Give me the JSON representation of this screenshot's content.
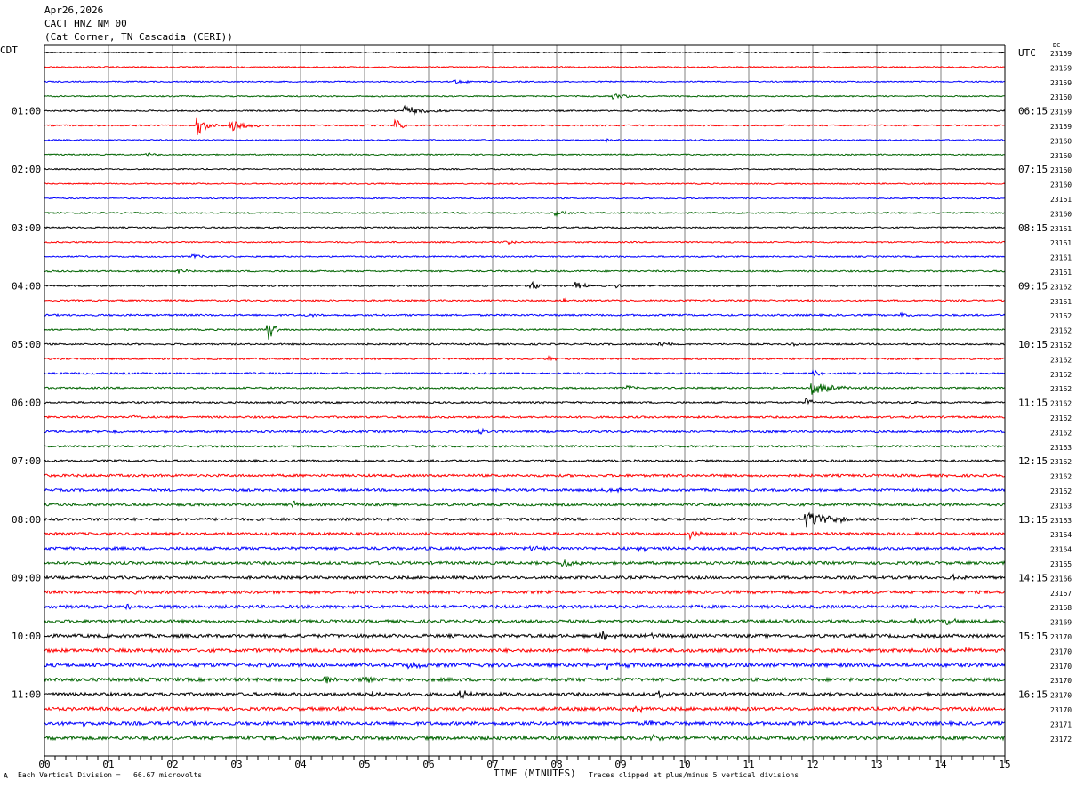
{
  "header": {
    "date": "Apr26,2026",
    "station": "CACT HNZ NM 00",
    "location": "(Cat Corner, TN Cascadia (CERI))"
  },
  "left_timezone": "CDT",
  "right_timezone": "UTC",
  "dc_label": "DC",
  "footer": {
    "scale_note": "Each Vertical Division =   66.67 microvolts",
    "xlabel": "TIME (MINUTES)",
    "clip_note": "Traces clipped at plus/minus 5 vertical divisions",
    "corner_mark": "A"
  },
  "colors": {
    "trace_cycle": [
      "#000000",
      "#ff0000",
      "#0000ff",
      "#006400"
    ],
    "grid": "#808080",
    "frame": "#000000"
  },
  "chart_data": {
    "type": "line",
    "title": "",
    "xlabel": "TIME (MINUTES)",
    "ylabel": "",
    "xlim": [
      0,
      15
    ],
    "x_ticks": [
      "00",
      "01",
      "02",
      "03",
      "04",
      "05",
      "06",
      "07",
      "08",
      "09",
      "10",
      "11",
      "12",
      "13",
      "14",
      "15"
    ],
    "rows_per_hour": 4,
    "row_count": 48,
    "grid": true,
    "left_hour_labels": [
      {
        "row": 4,
        "label": "01:00"
      },
      {
        "row": 8,
        "label": "02:00"
      },
      {
        "row": 12,
        "label": "03:00"
      },
      {
        "row": 16,
        "label": "04:00"
      },
      {
        "row": 20,
        "label": "05:00"
      },
      {
        "row": 24,
        "label": "06:00"
      },
      {
        "row": 28,
        "label": "07:00"
      },
      {
        "row": 32,
        "label": "08:00"
      },
      {
        "row": 36,
        "label": "09:00"
      },
      {
        "row": 40,
        "label": "10:00"
      },
      {
        "row": 44,
        "label": "11:00"
      }
    ],
    "right_hour_labels": [
      {
        "row": 0,
        "label": "UTC"
      },
      {
        "row": 4,
        "label": "06:15"
      },
      {
        "row": 8,
        "label": "07:15"
      },
      {
        "row": 12,
        "label": "08:15"
      },
      {
        "row": 16,
        "label": "09:15"
      },
      {
        "row": 20,
        "label": "10:15"
      },
      {
        "row": 24,
        "label": "11:15"
      },
      {
        "row": 28,
        "label": "12:15"
      },
      {
        "row": 32,
        "label": "13:15"
      },
      {
        "row": 36,
        "label": "14:15"
      },
      {
        "row": 40,
        "label": "15:15"
      },
      {
        "row": 44,
        "label": "16:15"
      }
    ],
    "dc_offsets": [
      "23159",
      "23159",
      "23159",
      "23160",
      "23159",
      "23159",
      "23160",
      "23160",
      "23160",
      "23160",
      "23161",
      "23160",
      "23161",
      "23161",
      "23161",
      "23161",
      "23162",
      "23161",
      "23162",
      "23162",
      "23162",
      "23162",
      "23162",
      "23162",
      "23162",
      "23162",
      "23162",
      "23163",
      "23162",
      "23162",
      "23162",
      "23163",
      "23163",
      "23164",
      "23164",
      "23165",
      "23166",
      "23167",
      "23168",
      "23169",
      "23170",
      "23170",
      "23170",
      "23170",
      "23170",
      "23170",
      "23171",
      "23172"
    ],
    "noise_levels": [
      0.6,
      0.7,
      0.7,
      0.7,
      0.8,
      0.8,
      0.7,
      0.7,
      0.7,
      0.7,
      0.7,
      0.8,
      0.8,
      0.8,
      0.8,
      0.9,
      0.9,
      0.9,
      1.0,
      0.9,
      0.9,
      1.0,
      1.0,
      1.0,
      1.0,
      1.1,
      1.2,
      1.1,
      1.2,
      1.4,
      1.4,
      1.4,
      1.5,
      1.5,
      1.6,
      1.6,
      1.6,
      1.7,
      1.8,
      1.7,
      1.8,
      1.9,
      2.0,
      1.9,
      1.8,
      1.8,
      1.9,
      2.0
    ],
    "events": [
      {
        "row": 2,
        "minute": 6.4,
        "amp": 2.5,
        "dur": 0.5
      },
      {
        "row": 3,
        "minute": 8.9,
        "amp": 3,
        "dur": 0.5
      },
      {
        "row": 4,
        "minute": 5.6,
        "amp": 6,
        "dur": 0.8
      },
      {
        "row": 5,
        "minute": 2.4,
        "amp": 12,
        "dur": 0.3
      },
      {
        "row": 5,
        "minute": 2.9,
        "amp": 7,
        "dur": 0.6
      },
      {
        "row": 5,
        "minute": 5.5,
        "amp": 6,
        "dur": 0.2
      },
      {
        "row": 6,
        "minute": 8.8,
        "amp": 2,
        "dur": 0.6
      },
      {
        "row": 7,
        "minute": 1.6,
        "amp": 2,
        "dur": 0.4
      },
      {
        "row": 11,
        "minute": 8.0,
        "amp": 4,
        "dur": 0.3
      },
      {
        "row": 13,
        "minute": 7.2,
        "amp": 2.5,
        "dur": 0.4
      },
      {
        "row": 14,
        "minute": 2.3,
        "amp": 3,
        "dur": 0.3
      },
      {
        "row": 15,
        "minute": 2.1,
        "amp": 3,
        "dur": 0.3
      },
      {
        "row": 16,
        "minute": 7.6,
        "amp": 6,
        "dur": 0.2
      },
      {
        "row": 16,
        "minute": 8.3,
        "amp": 6,
        "dur": 0.3
      },
      {
        "row": 16,
        "minute": 8.95,
        "amp": 4,
        "dur": 0.1
      },
      {
        "row": 17,
        "minute": 8.1,
        "amp": 4,
        "dur": 0.2
      },
      {
        "row": 18,
        "minute": 4.1,
        "amp": 2,
        "dur": 0.3
      },
      {
        "row": 18,
        "minute": 13.4,
        "amp": 3,
        "dur": 0.3
      },
      {
        "row": 19,
        "minute": 3.5,
        "amp": 12,
        "dur": 0.2
      },
      {
        "row": 20,
        "minute": 9.6,
        "amp": 3,
        "dur": 0.3
      },
      {
        "row": 20,
        "minute": 11.7,
        "amp": 2.5,
        "dur": 0.2
      },
      {
        "row": 21,
        "minute": 7.9,
        "amp": 3,
        "dur": 0.1
      },
      {
        "row": 22,
        "minute": 12.0,
        "amp": 4,
        "dur": 0.3
      },
      {
        "row": 23,
        "minute": 12.0,
        "amp": 7,
        "dur": 0.9
      },
      {
        "row": 23,
        "minute": 9.1,
        "amp": 3,
        "dur": 0.2
      },
      {
        "row": 24,
        "minute": 11.9,
        "amp": 4,
        "dur": 0.3
      },
      {
        "row": 25,
        "minute": 1.4,
        "amp": 3,
        "dur": 0.2
      },
      {
        "row": 26,
        "minute": 6.8,
        "amp": 3,
        "dur": 0.4
      },
      {
        "row": 26,
        "minute": 1.1,
        "amp": 2,
        "dur": 0.3
      },
      {
        "row": 30,
        "minute": 8.8,
        "amp": 3,
        "dur": 0.3
      },
      {
        "row": 31,
        "minute": 3.9,
        "amp": 4,
        "dur": 0.2
      },
      {
        "row": 32,
        "minute": 11.9,
        "amp": 10,
        "dur": 0.9
      },
      {
        "row": 33,
        "minute": 10.1,
        "amp": 5,
        "dur": 0.3
      },
      {
        "row": 34,
        "minute": 7.6,
        "amp": 3,
        "dur": 0.3
      },
      {
        "row": 34,
        "minute": 9.3,
        "amp": 3,
        "dur": 0.3
      },
      {
        "row": 35,
        "minute": 8.1,
        "amp": 6,
        "dur": 0.3
      },
      {
        "row": 36,
        "minute": 14.2,
        "amp": 3,
        "dur": 0.4
      },
      {
        "row": 37,
        "minute": 1.4,
        "amp": 3,
        "dur": 0.2
      },
      {
        "row": 38,
        "minute": 1.3,
        "amp": 4,
        "dur": 0.2
      },
      {
        "row": 39,
        "minute": 14.1,
        "amp": 5,
        "dur": 0.2
      },
      {
        "row": 39,
        "minute": 13.6,
        "amp": 2.5,
        "dur": 0.3
      },
      {
        "row": 40,
        "minute": 8.7,
        "amp": 5,
        "dur": 0.4
      },
      {
        "row": 40,
        "minute": 9.4,
        "amp": 3,
        "dur": 0.3
      },
      {
        "row": 41,
        "minute": 14.3,
        "amp": 4,
        "dur": 0.3
      },
      {
        "row": 42,
        "minute": 5.7,
        "amp": 4,
        "dur": 0.4
      },
      {
        "row": 42,
        "minute": 8.8,
        "amp": 4,
        "dur": 0.5
      },
      {
        "row": 43,
        "minute": 4.4,
        "amp": 5,
        "dur": 0.3
      },
      {
        "row": 43,
        "minute": 5.0,
        "amp": 3,
        "dur": 0.3
      },
      {
        "row": 44,
        "minute": 6.5,
        "amp": 4,
        "dur": 0.4
      },
      {
        "row": 44,
        "minute": 9.6,
        "amp": 4,
        "dur": 0.3
      },
      {
        "row": 44,
        "minute": 5.1,
        "amp": 3,
        "dur": 0.4
      },
      {
        "row": 45,
        "minute": 9.2,
        "amp": 6,
        "dur": 0.3
      },
      {
        "row": 45,
        "minute": 4.6,
        "amp": 3,
        "dur": 0.3
      },
      {
        "row": 46,
        "minute": 0.6,
        "amp": 3,
        "dur": 0.4
      },
      {
        "row": 46,
        "minute": 9.4,
        "amp": 3,
        "dur": 0.4
      },
      {
        "row": 47,
        "minute": 9.5,
        "amp": 4,
        "dur": 0.3
      },
      {
        "row": 47,
        "minute": 3.2,
        "amp": 3,
        "dur": 0.2
      }
    ]
  }
}
